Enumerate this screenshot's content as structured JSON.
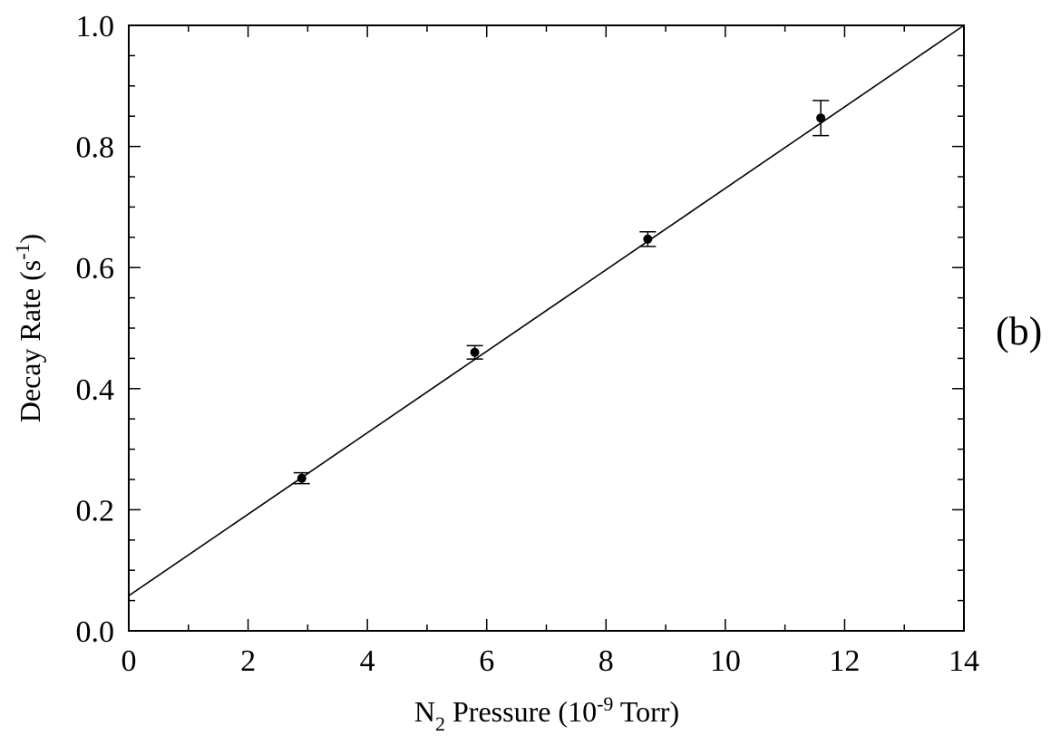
{
  "chart_data": {
    "type": "scatter",
    "title": "",
    "xlabel": {
      "main": "N",
      "sub": "2",
      "mid": " Pressure (10",
      "sup": "-9",
      "end": " Torr)"
    },
    "ylabel": {
      "main": "Decay Rate (s",
      "sup": "-1",
      "end": ")"
    },
    "panel_label": "(b)",
    "xlim": [
      0,
      14
    ],
    "ylim": [
      0.0,
      1.0
    ],
    "x_ticks": [
      "0",
      "2",
      "4",
      "6",
      "8",
      "10",
      "12",
      "14"
    ],
    "y_ticks": [
      "0.0",
      "0.2",
      "0.4",
      "0.6",
      "0.8",
      "1.0"
    ],
    "grid": false,
    "series": [
      {
        "type": "scatter-errorbar",
        "points": [
          {
            "x": 2.9,
            "y": 0.252,
            "err": 0.009
          },
          {
            "x": 5.8,
            "y": 0.46,
            "err": 0.011
          },
          {
            "x": 8.7,
            "y": 0.647,
            "err": 0.012
          },
          {
            "x": 11.6,
            "y": 0.847,
            "err": 0.029
          }
        ]
      },
      {
        "type": "line",
        "points": [
          {
            "x": 0,
            "y": 0.058
          },
          {
            "x": 14,
            "y": 1.0
          }
        ]
      }
    ]
  }
}
